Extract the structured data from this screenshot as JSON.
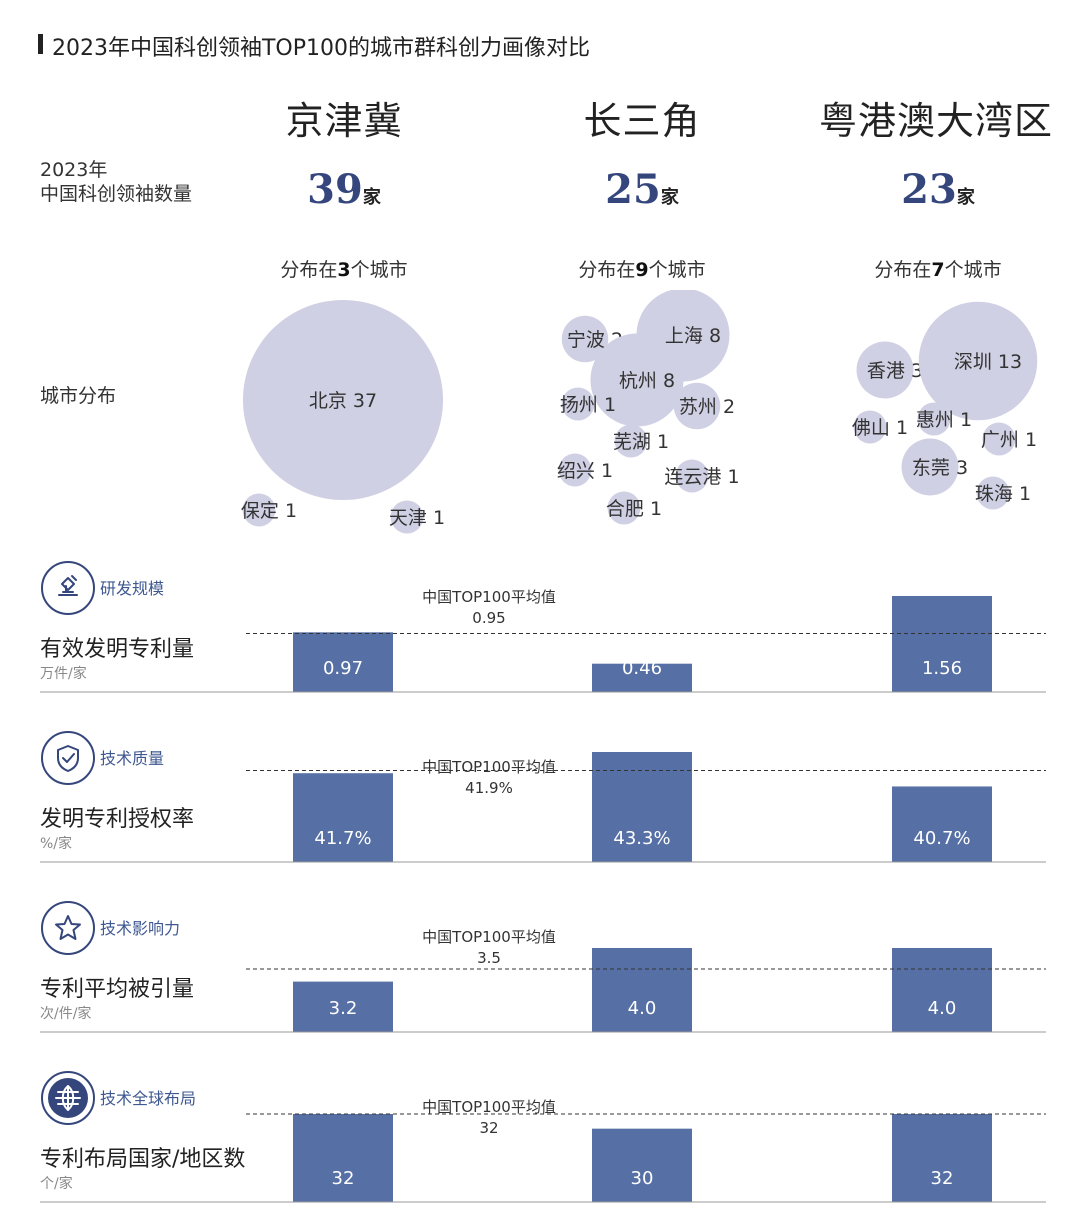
{
  "title": "2023年中国科创领袖TOP100的城市群科创力画像对比",
  "regions": [
    "京津冀",
    "长三角",
    "粤港澳大湾区"
  ],
  "count_label": {
    "line1": "2023年",
    "line2": "中国科创领袖数量"
  },
  "counts": [
    {
      "value": "39",
      "unit": "家"
    },
    {
      "value": "25",
      "unit": "家"
    },
    {
      "value": "23",
      "unit": "家"
    }
  ],
  "distribution_labels": [
    {
      "prefix": "分布在",
      "n": "3",
      "suffix": "个城市"
    },
    {
      "prefix": "分布在",
      "n": "9",
      "suffix": "个城市"
    },
    {
      "prefix": "分布在",
      "n": "7",
      "suffix": "个城市"
    }
  ],
  "city_row_label": "城市分布",
  "colors": {
    "bubble": "#cfd0e3",
    "bar": "#5670a5",
    "accent": "#3f5892",
    "dark": "#34467c"
  },
  "chart_data": [
    {
      "type": "scatter",
      "title": "城市分布",
      "series": [
        {
          "name": "京津冀",
          "points": [
            {
              "city": "北京",
              "value": 37
            },
            {
              "city": "保定",
              "value": 1
            },
            {
              "city": "天津",
              "value": 1
            }
          ]
        },
        {
          "name": "长三角",
          "points": [
            {
              "city": "宁波",
              "value": 2
            },
            {
              "city": "上海",
              "value": 8
            },
            {
              "city": "杭州",
              "value": 8
            },
            {
              "city": "扬州",
              "value": 1
            },
            {
              "city": "苏州",
              "value": 2
            },
            {
              "city": "芜湖",
              "value": 1
            },
            {
              "city": "绍兴",
              "value": 1
            },
            {
              "city": "连云港",
              "value": 1
            },
            {
              "city": "合肥",
              "value": 1
            }
          ]
        },
        {
          "name": "粤港澳大湾区",
          "points": [
            {
              "city": "香港",
              "value": 3
            },
            {
              "city": "深圳",
              "value": 13
            },
            {
              "city": "佛山",
              "value": 1
            },
            {
              "city": "惠州",
              "value": 1
            },
            {
              "city": "广州",
              "value": 1
            },
            {
              "city": "东莞",
              "value": 3
            },
            {
              "city": "珠海",
              "value": 1
            }
          ]
        }
      ]
    },
    {
      "type": "bar",
      "category_label": "研发规模",
      "metric": "有效发明专利量",
      "unit": "万件/家",
      "categories": [
        "京津冀",
        "长三角",
        "粤港澳大湾区"
      ],
      "values": [
        0.97,
        0.46,
        1.56
      ],
      "labels": [
        "0.97",
        "0.46",
        "1.56"
      ],
      "avg_label": "中国TOP100平均值",
      "avg_value": 0.95,
      "avg_text": "0.95"
    },
    {
      "type": "bar",
      "category_label": "技术质量",
      "metric": "发明专利授权率",
      "unit": "%/家",
      "categories": [
        "京津冀",
        "长三角",
        "粤港澳大湾区"
      ],
      "values": [
        41.7,
        43.3,
        40.7
      ],
      "labels": [
        "41.7%",
        "43.3%",
        "40.7%"
      ],
      "avg_label": "中国TOP100平均值",
      "avg_value": 41.9,
      "avg_text": "41.9%"
    },
    {
      "type": "bar",
      "category_label": "技术影响力",
      "metric": "专利平均被引量",
      "unit": "次/件/家",
      "categories": [
        "京津冀",
        "长三角",
        "粤港澳大湾区"
      ],
      "values": [
        3.2,
        4.0,
        4.0
      ],
      "labels": [
        "3.2",
        "4.0",
        "4.0"
      ],
      "avg_label": "中国TOP100平均值",
      "avg_value": 3.5,
      "avg_text": "3.5"
    },
    {
      "type": "bar",
      "category_label": "技术全球布局",
      "metric": "专利布局国家/地区数",
      "unit": "个/家",
      "categories": [
        "京津冀",
        "长三角",
        "粤港澳大湾区"
      ],
      "values": [
        32,
        30,
        32
      ],
      "labels": [
        "32",
        "30",
        "32"
      ],
      "avg_label": "中国TOP100平均值",
      "avg_value": 32,
      "avg_text": "32"
    }
  ]
}
